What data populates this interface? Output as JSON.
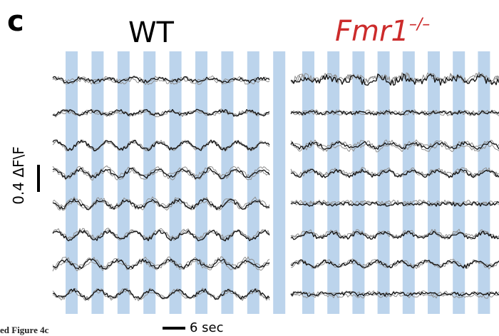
{
  "panel_label": "c",
  "titles": {
    "left": "WT",
    "right_main": "Fmr1",
    "right_sup": "–/–"
  },
  "colors": {
    "right_title": "#cc2b2b",
    "stim_band": "#bcd4ec",
    "trace_mean": "#111111",
    "trace_trial": "#8e8e8e"
  },
  "scale_bar": {
    "vertical_label": "0.4 ΔF\\F",
    "horizontal_label": "6 sec"
  },
  "caption_fragment": "ed Figure 4c",
  "panels": [
    {
      "name": "WT",
      "traces": 8,
      "stim_bands": 9
    },
    {
      "name": "Fmr1–/–",
      "traces": 8,
      "stim_bands": 10
    }
  ]
}
